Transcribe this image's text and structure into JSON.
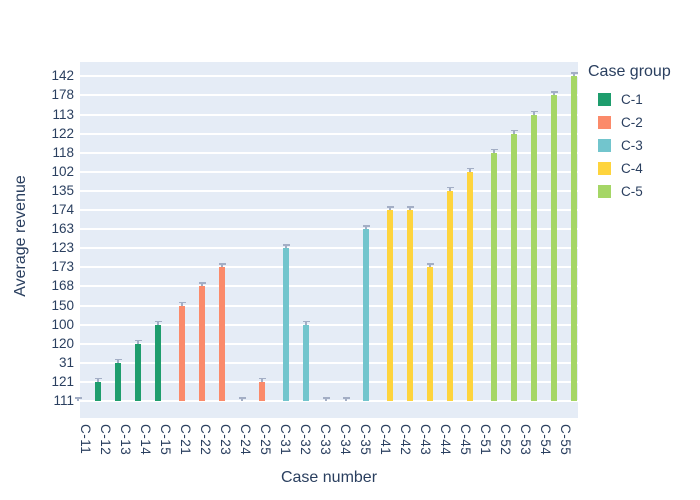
{
  "figure": {
    "colors": {
      "plot_bg": "#e5ecf6",
      "grid": "#ffffff",
      "text": "#2a3f5f",
      "error_bar": "#a3aec5",
      "paper_bg": "#ffffff"
    }
  },
  "chart_data": {
    "type": "bar",
    "title": "",
    "xlabel": "Case number",
    "ylabel": "Average revenue",
    "legend_title": "Case group",
    "legend_position": "right",
    "grid": "on",
    "y_axis_type": "categorical",
    "y_categories_bottom_to_top": [
      "111",
      "121",
      "31",
      "120",
      "100",
      "150",
      "168",
      "173",
      "123",
      "163",
      "174",
      "135",
      "102",
      "118",
      "122",
      "113",
      "178",
      "142"
    ],
    "x_categories": [
      "C-11",
      "C-12",
      "C-13",
      "C-14",
      "C-15",
      "C-21",
      "C-22",
      "C-23",
      "C-24",
      "C-25",
      "C-31",
      "C-32",
      "C-33",
      "C-34",
      "C-35",
      "C-41",
      "C-42",
      "C-43",
      "C-44",
      "C-45",
      "C-51",
      "C-52",
      "C-53",
      "C-54",
      "C-55"
    ],
    "series": [
      {
        "name": "C-1",
        "color": "#1e9d6d",
        "x": [
          "C-11",
          "C-12",
          "C-13",
          "C-14",
          "C-15"
        ],
        "y": [
          "111",
          "121",
          "31",
          "120",
          "100"
        ]
      },
      {
        "name": "C-2",
        "color": "#fb8a6a",
        "x": [
          "C-21",
          "C-22",
          "C-23",
          "C-24",
          "C-25"
        ],
        "y": [
          "150",
          "168",
          "173",
          "111",
          "121"
        ]
      },
      {
        "name": "C-3",
        "color": "#72c5cd",
        "x": [
          "C-31",
          "C-32",
          "C-33",
          "C-34",
          "C-35"
        ],
        "y": [
          "123",
          "100",
          "111",
          "111",
          "163"
        ]
      },
      {
        "name": "C-4",
        "color": "#fed43d",
        "x": [
          "C-41",
          "C-42",
          "C-43",
          "C-44",
          "C-45"
        ],
        "y": [
          "174",
          "174",
          "173",
          "135",
          "102"
        ]
      },
      {
        "name": "C-5",
        "color": "#a5d666",
        "x": [
          "C-51",
          "C-52",
          "C-53",
          "C-54",
          "C-55"
        ],
        "y": [
          "118",
          "122",
          "113",
          "178",
          "142"
        ]
      }
    ],
    "error_bars": "small gray caps at each bar top"
  }
}
